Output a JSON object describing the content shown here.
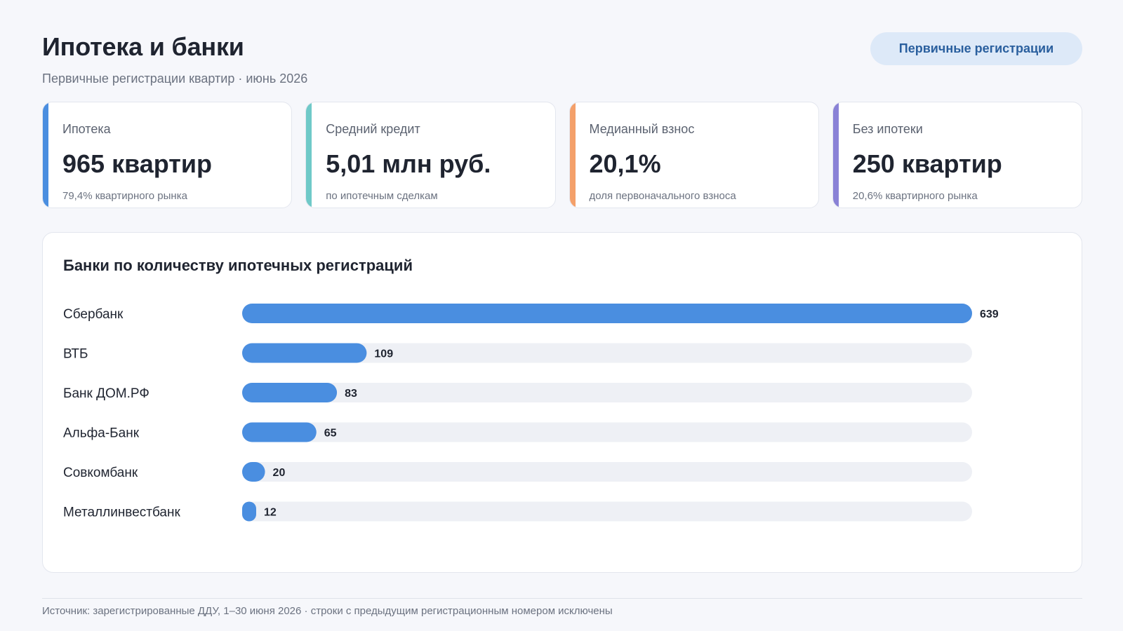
{
  "header": {
    "title": "Ипотека и банки",
    "subtitle": "Первичные регистрации квартир · июнь 2026",
    "pill_label": "Первичные регистрации"
  },
  "kpis": [
    {
      "label": "Ипотека",
      "value": "965 квартир",
      "note": "79,4% квартирного рынка",
      "color": "#4a8ee0"
    },
    {
      "label": "Средний кредит",
      "value": "5,01 млн руб.",
      "note": "по ипотечным сделкам",
      "color": "#6fc9c8"
    },
    {
      "label": "Медианный взнос",
      "value": "20,1%",
      "note": "доля первоначального взноса",
      "color": "#f4a06a"
    },
    {
      "label": "Без ипотеки",
      "value": "250 квартир",
      "note": "20,6% квартирного рынка",
      "color": "#8a82d6"
    }
  ],
  "chart_data": {
    "type": "bar",
    "orientation": "horizontal",
    "title": "Банки по количеству ипотечных регистраций",
    "categories": [
      "Сбербанк",
      "ВТБ",
      "Банк ДОМ.РФ",
      "Альфа-Банк",
      "Совкомбанк",
      "Металлинвестбанк"
    ],
    "values": [
      639,
      109,
      83,
      65,
      20,
      12
    ],
    "xlim": [
      0,
      639
    ],
    "bar_color": "#4a8ee0",
    "track_color": "#eef0f5",
    "grid": false,
    "data_labels": true
  },
  "footer": {
    "source": "Источник: зарегистрированные ДДУ, 1–30 июня 2026 · строки с предыдущим регистрационным номером исключены"
  }
}
